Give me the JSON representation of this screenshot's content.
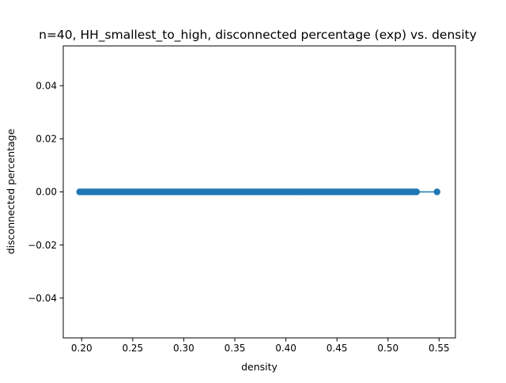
{
  "chart_data": {
    "type": "line",
    "title": "n=40, HH_smallest_to_high, disconnected percentage (exp) vs. density",
    "xlabel": "density",
    "ylabel": "disconnected percentage",
    "xlim": [
      0.182,
      0.566
    ],
    "ylim": [
      -0.055,
      0.055
    ],
    "xticks": [
      0.2,
      0.25,
      0.3,
      0.35,
      0.4,
      0.45,
      0.5,
      0.55
    ],
    "xtick_labels": [
      "0.20",
      "0.25",
      "0.30",
      "0.35",
      "0.40",
      "0.45",
      "0.50",
      "0.55"
    ],
    "yticks": [
      -0.04,
      -0.02,
      0.0,
      0.02,
      0.04
    ],
    "ytick_labels": [
      "−0.04",
      "−0.02",
      "0.00",
      "0.02",
      "0.04"
    ],
    "grid": false,
    "legend": null,
    "series": [
      {
        "color": "#1f77b4",
        "marker": "circle",
        "x_range": [
          0.198,
          0.528
        ],
        "x_outlier": 0.548,
        "y": 0.0
      }
    ]
  }
}
